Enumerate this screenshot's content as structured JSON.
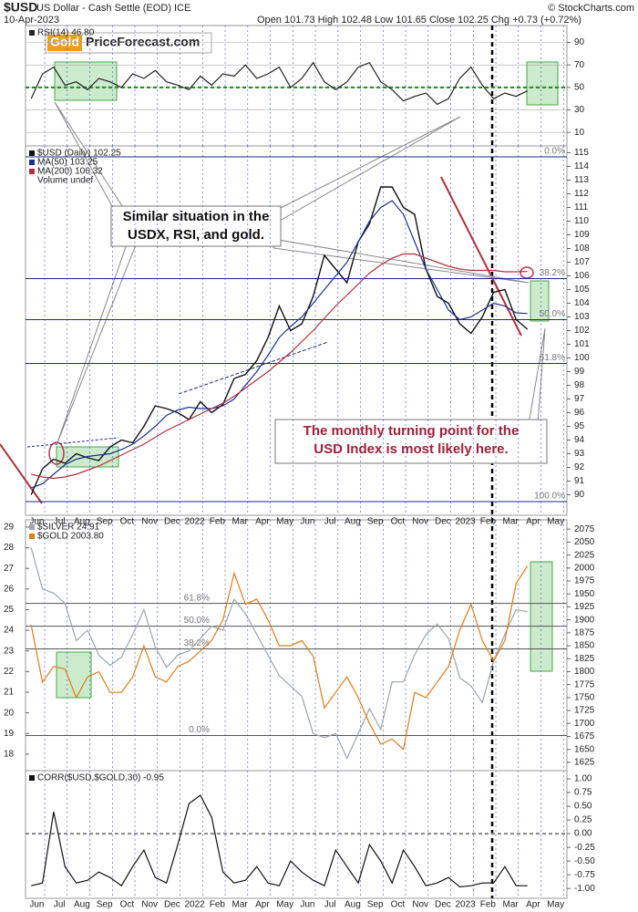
{
  "header": {
    "symbol": "$USD",
    "description": "US Dollar - Cash Settle (EOD) ICE",
    "date": "10-Apr-2023",
    "quote": "Open 101.73 High 102.48 Low 101.65 Close 102.25 Chg +0.73 (+0.72%)",
    "credit": "© StockCharts.com"
  },
  "logo": {
    "brand": "Gold",
    "site": "PriceForecast.com"
  },
  "chart_data": [
    {
      "type": "line",
      "ylim": [
        -2,
        105
      ],
      "yticks": [
        10,
        30,
        50,
        70,
        90
      ],
      "grid": true,
      "reference_line": {
        "value": 50,
        "color": "#1a8a1a"
      },
      "series": [
        {
          "name": "RSI(14) 46.80",
          "color": "#222222",
          "values": [
            40,
            62,
            68,
            52,
            55,
            48,
            58,
            55,
            50,
            62,
            58,
            65,
            55,
            52,
            48,
            60,
            52,
            62,
            60,
            70,
            58,
            62,
            68,
            50,
            58,
            72,
            55,
            48,
            55,
            68,
            72,
            55,
            48,
            38,
            42,
            45,
            35,
            40,
            58,
            68,
            52,
            40,
            45,
            42,
            47,
            null,
            null,
            null
          ]
        }
      ]
    },
    {
      "type": "line",
      "ylim": [
        88.5,
        115.5
      ],
      "yticks": [
        90,
        91,
        92,
        93,
        94,
        95,
        96,
        97,
        98,
        99,
        100,
        101,
        102,
        103,
        104,
        105,
        106,
        107,
        108,
        109,
        110,
        111,
        112,
        113,
        114,
        115
      ],
      "categories": [
        "Jun",
        null,
        "Jul",
        null,
        "Aug",
        null,
        "Sep",
        null,
        "Oct",
        null,
        "Nov",
        null,
        "Dec",
        null,
        "2022",
        null,
        "Feb",
        null,
        "Mar",
        null,
        "Apr",
        null,
        "May",
        null,
        "Jun",
        null,
        "Jul",
        null,
        "Aug",
        null,
        "Sep",
        null,
        "Oct",
        null,
        "Nov",
        null,
        "Dec",
        null,
        "2023",
        null,
        "Feb",
        null,
        "Mar",
        null,
        "Apr",
        null,
        "May",
        null
      ],
      "legend_extra": "Volume undef",
      "fib_levels": [
        {
          "label": "0.0%",
          "value": 114.7
        },
        {
          "label": "38.2%",
          "value": 105.8
        },
        {
          "label": "50.0%",
          "value": 102.8
        },
        {
          "label": "61.8%",
          "value": 99.6
        },
        {
          "label": "100.0%",
          "value": 89.5
        }
      ],
      "fib_color": "#1c2a80",
      "series": [
        {
          "name": "$USD (Daily) 102.25",
          "color": "#111111",
          "values": [
            90.0,
            91.9,
            92.6,
            92.3,
            93.0,
            92.7,
            92.5,
            93.5,
            94.0,
            93.8,
            95.0,
            96.5,
            96.3,
            96.0,
            95.5,
            96.8,
            96.0,
            96.6,
            98.5,
            98.8,
            99.8,
            101.5,
            103.8,
            102.0,
            102.5,
            104.5,
            107.5,
            106.5,
            105.5,
            108.5,
            109.8,
            112.5,
            112.5,
            111.0,
            110.5,
            106.5,
            104.5,
            104.0,
            102.5,
            101.8,
            103.0,
            104.8,
            105.0,
            102.8,
            102.1,
            null,
            null,
            null
          ]
        },
        {
          "name": "MA(50) 103.25",
          "color": "#1f2f8f",
          "values": [
            90.5,
            90.8,
            91.5,
            92.2,
            92.6,
            92.8,
            92.9,
            93.0,
            93.3,
            93.7,
            94.3,
            95.0,
            95.8,
            96.2,
            96.4,
            96.3,
            96.3,
            96.5,
            97.0,
            98.0,
            99.0,
            100.2,
            101.5,
            102.3,
            103.0,
            104.0,
            105.0,
            106.0,
            107.0,
            108.5,
            110.0,
            111.0,
            111.5,
            110.5,
            108.5,
            106.5,
            105.0,
            103.5,
            102.8,
            103.0,
            103.5,
            104.0,
            103.8,
            103.3,
            103.25,
            null,
            null,
            null
          ]
        },
        {
          "name": "MA(200) 106.32",
          "color": "#b0303c",
          "values": [
            91.5,
            91.3,
            91.2,
            91.3,
            91.5,
            91.8,
            92.1,
            92.5,
            92.9,
            93.3,
            93.7,
            94.2,
            94.7,
            95.1,
            95.5,
            95.9,
            96.3,
            96.7,
            97.2,
            97.8,
            98.4,
            99.0,
            99.7,
            100.4,
            101.2,
            102.0,
            102.9,
            103.8,
            104.6,
            105.4,
            106.2,
            106.8,
            107.3,
            107.6,
            107.6,
            107.3,
            107.0,
            106.7,
            106.5,
            106.4,
            106.4,
            106.4,
            106.3,
            106.3,
            106.32,
            null,
            null,
            null
          ]
        }
      ],
      "annotations": [
        {
          "lines": [
            "Similar situation in the",
            "USDX, RSI, and gold."
          ],
          "color": "#111111"
        },
        {
          "lines": [
            "The monthly turning point for the",
            "USD Index is most likely here."
          ],
          "color": "#a0203a"
        }
      ]
    },
    {
      "type": "line",
      "ylim": [
        1609,
        2093
      ],
      "yticks": [
        1625,
        1650,
        1675,
        1700,
        1725,
        1750,
        1775,
        1800,
        1825,
        1850,
        1875,
        1900,
        1925,
        1950,
        1975,
        2000,
        2025,
        2050,
        2075
      ],
      "y2lim": [
        17.2,
        29.35
      ],
      "y2ticks": [
        18,
        19,
        20,
        21,
        22,
        23,
        24,
        25,
        26,
        27,
        28,
        29
      ],
      "fib_levels": [
        {
          "label": "61.8%",
          "value": 25.3
        },
        {
          "label": "50.0%",
          "value": 24.2
        },
        {
          "label": "38.2%",
          "value": 23.1
        },
        {
          "label": "0.0%",
          "value": 18.9
        }
      ],
      "fib_color": "#555555",
      "series": [
        {
          "name": "$SILVER 24.91",
          "color": "#9aa5ad",
          "axis": "y2",
          "values": [
            28.0,
            26.0,
            25.8,
            25.3,
            23.5,
            24.0,
            22.8,
            22.3,
            22.7,
            23.8,
            25.0,
            23.2,
            22.2,
            22.8,
            23.0,
            23.6,
            24.2,
            24.0,
            25.5,
            24.8,
            23.8,
            22.8,
            21.8,
            21.3,
            20.8,
            19.0,
            18.8,
            19.0,
            17.8,
            19.0,
            20.2,
            19.2,
            21.5,
            21.5,
            22.8,
            23.8,
            24.3,
            23.6,
            21.7,
            21.3,
            20.5,
            22.5,
            23.8,
            25.0,
            24.9,
            null,
            null,
            null
          ]
        },
        {
          "name": "$GOLD 2003.80",
          "color": "#e07b1a",
          "values": [
            1890,
            1780,
            1810,
            1805,
            1750,
            1790,
            1800,
            1760,
            1760,
            1790,
            1850,
            1790,
            1780,
            1810,
            1820,
            1840,
            1860,
            1900,
            1990,
            1930,
            1940,
            1900,
            1850,
            1850,
            1860,
            1830,
            1730,
            1760,
            1790,
            1750,
            1700,
            1660,
            1670,
            1650,
            1760,
            1750,
            1780,
            1810,
            1880,
            1930,
            1860,
            1820,
            1860,
            1970,
            2004,
            null,
            null,
            null
          ]
        }
      ]
    },
    {
      "type": "line",
      "ylim": [
        -1.18,
        1.15
      ],
      "yticks": [
        {
          "value": -1,
          "label": "-1.00"
        },
        {
          "value": -0.75,
          "label": "-0.75"
        },
        {
          "value": -0.5,
          "label": "-0.50"
        },
        {
          "value": -0.25,
          "label": "-0.25"
        },
        {
          "value": 0,
          "label": "0.00"
        },
        {
          "value": 0.25,
          "label": "0.25"
        },
        {
          "value": 0.5,
          "label": "0.50"
        },
        {
          "value": 0.75,
          "label": "0.75"
        },
        {
          "value": 1,
          "label": "1.00"
        }
      ],
      "reference_line": {
        "value": 0,
        "color": "#888888"
      },
      "categories": [
        "Jun",
        null,
        "Jul",
        null,
        "Aug",
        null,
        "Sep",
        null,
        "Oct",
        null,
        "Nov",
        null,
        "Dec",
        null,
        "2022",
        null,
        "Feb",
        null,
        "Mar",
        null,
        "Apr",
        null,
        "May",
        null,
        "Jun",
        null,
        "Jul",
        null,
        "Aug",
        null,
        "Sep",
        null,
        "Oct",
        null,
        "Nov",
        null,
        "Dec",
        null,
        "2023",
        null,
        "Feb",
        null,
        "Mar",
        null,
        "Apr",
        null,
        "May",
        null
      ],
      "series": [
        {
          "name": "CORR($USD,$GOLD,30) -0.95",
          "color": "#111111",
          "values": [
            -0.95,
            -0.9,
            0.4,
            -0.6,
            -0.9,
            -0.85,
            -0.7,
            -0.8,
            -0.95,
            -0.6,
            -0.3,
            -0.8,
            -0.9,
            -0.2,
            0.55,
            0.7,
            0.3,
            -0.7,
            -0.9,
            -0.85,
            -0.6,
            -0.9,
            -0.95,
            -0.5,
            -0.7,
            -0.85,
            -0.95,
            -0.3,
            -0.6,
            -0.9,
            -0.2,
            -0.5,
            -0.9,
            -0.3,
            -0.6,
            -0.95,
            -0.9,
            -0.8,
            -0.97,
            -0.95,
            -0.9,
            -0.9,
            -0.6,
            -0.95,
            -0.95,
            null,
            null,
            null
          ]
        }
      ]
    }
  ]
}
